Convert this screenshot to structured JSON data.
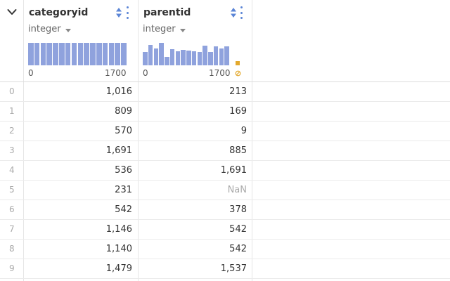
{
  "columns": [
    {
      "name": "categoryid",
      "type": "integer",
      "hist": {
        "min": "0",
        "max": "1700",
        "bars": [
          0.95,
          0.94,
          0.93,
          0.95,
          0.94,
          0.95,
          0.95,
          0.95,
          0.95,
          0.95,
          0.94,
          0.95,
          0.95,
          0.95,
          0.93,
          0.95
        ]
      },
      "values": [
        "1,016",
        "809",
        "570",
        "1,691",
        "536",
        "231",
        "542",
        "1,146",
        "1,140",
        "1,479"
      ]
    },
    {
      "name": "parentid",
      "type": "integer",
      "hist": {
        "min": "0",
        "max": "1700",
        "bars": [
          0.55,
          0.85,
          0.7,
          0.95,
          0.35,
          0.68,
          0.6,
          0.65,
          0.63,
          0.6,
          0.55,
          0.82,
          0.55,
          0.8,
          0.72,
          0.8
        ]
      },
      "values": [
        "213",
        "169",
        "9",
        "885",
        "1,691",
        "NaN",
        "378",
        "542",
        "542",
        "1,537"
      ]
    }
  ],
  "row_indices": [
    "0",
    "1",
    "2",
    "3",
    "4",
    "5",
    "6",
    "7",
    "8",
    "9"
  ]
}
